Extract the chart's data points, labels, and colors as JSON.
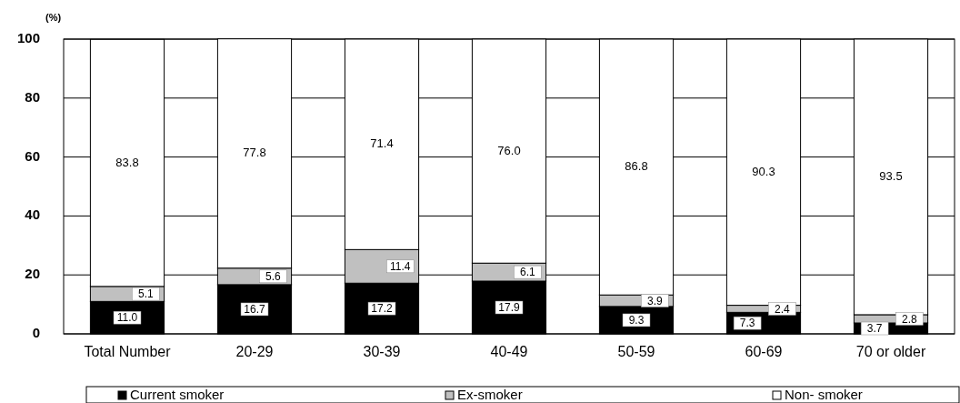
{
  "chart_data": {
    "type": "bar",
    "stacked": true,
    "ylabel": "(%)",
    "categories": [
      "Total Number",
      "20-29",
      "30-39",
      "40-49",
      "50-59",
      "60-69",
      "70 or older"
    ],
    "series": [
      {
        "name": "Current smoker",
        "color": "#000000",
        "values": [
          11.0,
          16.7,
          17.2,
          17.9,
          9.3,
          7.3,
          3.7
        ],
        "value_labels": [
          "11.0",
          "16.7",
          "17.2",
          "17.9",
          "9.3",
          "7.3",
          "3.7"
        ]
      },
      {
        "name": "Ex-smoker",
        "color": "#c0c0c0",
        "values": [
          5.1,
          5.6,
          11.4,
          6.1,
          3.9,
          2.4,
          2.8
        ],
        "value_labels": [
          "5.1",
          "5.6",
          "11.4",
          "6.1",
          "3.9",
          "2.4",
          "2.8"
        ]
      },
      {
        "name": "Non- smoker",
        "color": "#ffffff",
        "values": [
          83.8,
          77.8,
          71.4,
          76.0,
          86.8,
          90.3,
          93.5
        ],
        "value_labels": [
          "83.8",
          "77.8",
          "71.4",
          "76.0",
          "86.8",
          "90.3",
          "93.5"
        ]
      }
    ],
    "ylim": [
      0,
      100
    ],
    "yticks": [
      0,
      20,
      40,
      60,
      80,
      100
    ],
    "grid": "y",
    "legend": "bottom"
  }
}
